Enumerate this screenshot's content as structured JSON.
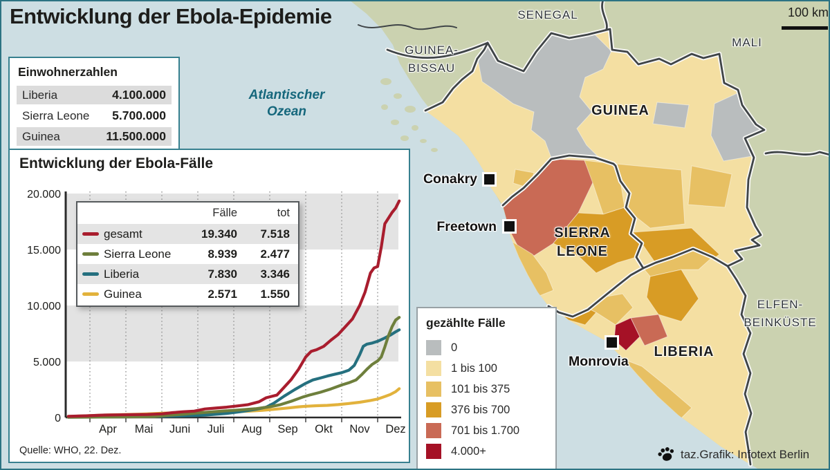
{
  "title": "Entwicklung der Ebola-Epidemie",
  "population_box": {
    "title": "Einwohnerzahlen",
    "rows": [
      {
        "country": "Liberia",
        "value": "4.100.000"
      },
      {
        "country": "Sierra Leone",
        "value": "5.700.000"
      },
      {
        "country": "Guinea",
        "value": "11.500.000"
      }
    ]
  },
  "ocean_label": [
    "Atlantischer",
    "Ozean"
  ],
  "scale_bar_label": "100 km",
  "credit": {
    "icon": "paw-icon",
    "text": "taz.Grafik: Infotext Berlin"
  },
  "chart_box": {
    "title": "Entwicklung der Ebola-Fälle",
    "source": "Quelle: WHO, 22. Dez.",
    "legend_header": {
      "cases": "Fälle",
      "dead": "tot"
    }
  },
  "chart_data": {
    "type": "line",
    "title": "Entwicklung der Ebola-Fälle",
    "x_axis": {
      "unit": "month_decimal (4.0 = 1. Apr, 12.6 = 22. Dez)",
      "tick_labels": [
        "Apr",
        "Mai",
        "Juni",
        "Juli",
        "Aug",
        "Sep",
        "Okt",
        "Nov",
        "Dez"
      ],
      "gridline_months": [
        4,
        5,
        6,
        7,
        8,
        9,
        10,
        11,
        12
      ],
      "range": [
        3.4,
        12.6
      ]
    },
    "y_axis": {
      "tick_values": [
        0,
        5000,
        10000,
        15000,
        20000
      ],
      "tick_labels": [
        "0",
        "5.000",
        "10.000",
        "15.000",
        "20.000"
      ],
      "range": [
        0,
        20000
      ],
      "shaded_bands": [
        [
          5000,
          10000
        ],
        [
          15000,
          20000
        ]
      ]
    },
    "series": [
      {
        "name": "gesamt",
        "color": "#a91d2e",
        "cases_total": 19340,
        "dead_total": 7518,
        "cases_label": "19.340",
        "dead_label": "7.518",
        "points": [
          [
            3.4,
            100
          ],
          [
            3.7,
            130
          ],
          [
            4.0,
            160
          ],
          [
            4.4,
            215
          ],
          [
            4.8,
            235
          ],
          [
            5.2,
            250
          ],
          [
            5.6,
            270
          ],
          [
            6.0,
            320
          ],
          [
            6.3,
            430
          ],
          [
            6.6,
            510
          ],
          [
            6.9,
            570
          ],
          [
            7.2,
            760
          ],
          [
            7.5,
            840
          ],
          [
            7.8,
            920
          ],
          [
            8.1,
            1030
          ],
          [
            8.4,
            1150
          ],
          [
            8.7,
            1400
          ],
          [
            8.9,
            1760
          ],
          [
            9.05,
            1880
          ],
          [
            9.2,
            2000
          ],
          [
            9.4,
            2700
          ],
          [
            9.6,
            3400
          ],
          [
            9.8,
            4300
          ],
          [
            10.0,
            5400
          ],
          [
            10.15,
            5900
          ],
          [
            10.3,
            6050
          ],
          [
            10.5,
            6350
          ],
          [
            10.7,
            6900
          ],
          [
            10.9,
            7400
          ],
          [
            11.1,
            8100
          ],
          [
            11.3,
            8800
          ],
          [
            11.5,
            10000
          ],
          [
            11.65,
            11200
          ],
          [
            11.8,
            12900
          ],
          [
            11.9,
            13350
          ],
          [
            12.0,
            13480
          ],
          [
            12.1,
            15200
          ],
          [
            12.2,
            17300
          ],
          [
            12.3,
            17800
          ],
          [
            12.4,
            18300
          ],
          [
            12.5,
            18700
          ],
          [
            12.6,
            19340
          ]
        ]
      },
      {
        "name": "Sierra Leone",
        "color": "#6e7f3c",
        "cases_total": 8939,
        "dead_total": 2477,
        "cases_label": "8.939",
        "dead_label": "2.477",
        "points": [
          [
            3.4,
            20
          ],
          [
            4.0,
            30
          ],
          [
            4.6,
            45
          ],
          [
            5.2,
            60
          ],
          [
            5.8,
            85
          ],
          [
            6.2,
            200
          ],
          [
            6.6,
            290
          ],
          [
            7.0,
            400
          ],
          [
            7.4,
            500
          ],
          [
            7.8,
            590
          ],
          [
            8.2,
            680
          ],
          [
            8.6,
            780
          ],
          [
            9.0,
            950
          ],
          [
            9.3,
            1150
          ],
          [
            9.6,
            1450
          ],
          [
            9.9,
            1800
          ],
          [
            10.1,
            2000
          ],
          [
            10.4,
            2250
          ],
          [
            10.7,
            2550
          ],
          [
            11.0,
            2900
          ],
          [
            11.2,
            3100
          ],
          [
            11.4,
            3350
          ],
          [
            11.55,
            3800
          ],
          [
            11.7,
            4300
          ],
          [
            11.85,
            4750
          ],
          [
            12.0,
            5050
          ],
          [
            12.1,
            5400
          ],
          [
            12.2,
            6300
          ],
          [
            12.3,
            7300
          ],
          [
            12.4,
            8100
          ],
          [
            12.5,
            8700
          ],
          [
            12.6,
            8939
          ]
        ]
      },
      {
        "name": "Liberia",
        "color": "#25707f",
        "cases_total": 7830,
        "dead_total": 3346,
        "cases_label": "7.830",
        "dead_label": "3.346",
        "points": [
          [
            3.4,
            30
          ],
          [
            4.0,
            40
          ],
          [
            4.6,
            55
          ],
          [
            5.2,
            70
          ],
          [
            5.8,
            85
          ],
          [
            6.2,
            110
          ],
          [
            6.6,
            145
          ],
          [
            7.0,
            180
          ],
          [
            7.4,
            260
          ],
          [
            7.8,
            360
          ],
          [
            8.2,
            520
          ],
          [
            8.6,
            720
          ],
          [
            8.9,
            920
          ],
          [
            9.1,
            1250
          ],
          [
            9.4,
            1900
          ],
          [
            9.7,
            2500
          ],
          [
            10.0,
            3050
          ],
          [
            10.2,
            3350
          ],
          [
            10.4,
            3520
          ],
          [
            10.6,
            3700
          ],
          [
            10.8,
            3850
          ],
          [
            11.0,
            4000
          ],
          [
            11.2,
            4220
          ],
          [
            11.35,
            4650
          ],
          [
            11.5,
            5600
          ],
          [
            11.6,
            6350
          ],
          [
            11.7,
            6550
          ],
          [
            11.85,
            6650
          ],
          [
            12.0,
            6800
          ],
          [
            12.2,
            7100
          ],
          [
            12.35,
            7350
          ],
          [
            12.5,
            7650
          ],
          [
            12.6,
            7830
          ]
        ]
      },
      {
        "name": "Guinea",
        "color": "#e2b23c",
        "cases_total": 2571,
        "dead_total": 1550,
        "cases_label": "2.571",
        "dead_label": "1.550",
        "points": [
          [
            3.4,
            90
          ],
          [
            3.7,
            125
          ],
          [
            4.0,
            160
          ],
          [
            4.3,
            205
          ],
          [
            4.6,
            235
          ],
          [
            5.0,
            265
          ],
          [
            5.4,
            295
          ],
          [
            5.8,
            345
          ],
          [
            6.1,
            395
          ],
          [
            6.5,
            415
          ],
          [
            7.0,
            445
          ],
          [
            7.5,
            475
          ],
          [
            8.0,
            505
          ],
          [
            8.4,
            560
          ],
          [
            8.8,
            640
          ],
          [
            9.1,
            720
          ],
          [
            9.5,
            845
          ],
          [
            9.8,
            950
          ],
          [
            10.0,
            1000
          ],
          [
            10.3,
            1050
          ],
          [
            10.6,
            1080
          ],
          [
            10.9,
            1150
          ],
          [
            11.2,
            1250
          ],
          [
            11.5,
            1360
          ],
          [
            11.8,
            1520
          ],
          [
            12.0,
            1650
          ],
          [
            12.2,
            1870
          ],
          [
            12.35,
            2050
          ],
          [
            12.5,
            2300
          ],
          [
            12.6,
            2571
          ]
        ]
      }
    ]
  },
  "map": {
    "legend": {
      "title": "gezählte Fälle",
      "items": [
        {
          "label": "0",
          "color": "#b9bdbe"
        },
        {
          "label": "1 bis 100",
          "color": "#f4dfa2"
        },
        {
          "label": "101 bis 375",
          "color": "#e7c063"
        },
        {
          "label": "376 bis 700",
          "color": "#d89c25"
        },
        {
          "label": "701 bis 1.700",
          "color": "#c96a55"
        },
        {
          "label": "4.000+",
          "color": "#a51126"
        }
      ]
    },
    "colors": {
      "ocean": "#cddee3",
      "neighbor": "#cbd2b0",
      "border": "#3f4447",
      "border_casing": "#f8f8f6"
    },
    "labels": {
      "senegal": "SENEGAL",
      "mali": "MALI",
      "guinea_bissau": [
        "GUINEA-",
        "BISSAU"
      ],
      "guinea": "GUINEA",
      "sierra_leone": [
        "SIERRA",
        "LEONE"
      ],
      "liberia": "LIBERIA",
      "ivory_coast": [
        "ELFEN-",
        "BEINKÜSTE"
      ]
    },
    "cities": [
      {
        "name": "Conakry"
      },
      {
        "name": "Freetown"
      },
      {
        "name": "Monrovia"
      }
    ]
  }
}
